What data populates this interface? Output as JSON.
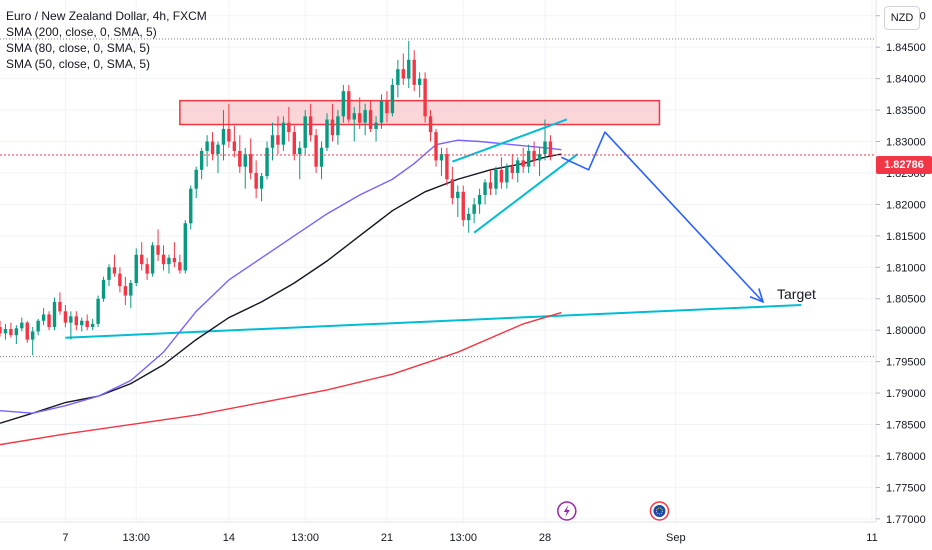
{
  "legend": {
    "title": "Euro / New Zealand Dollar, 4h, FXCM",
    "sma200": "SMA (200, close, 0, SMA, 5)",
    "sma80": "SMA (80, close, 0, SMA, 5)",
    "sma50": "SMA (50, close, 0, SMA, 5)"
  },
  "currency_badge": "NZD",
  "last_price": "1.82786",
  "annotations": {
    "target_label": "Target"
  },
  "colors": {
    "up": "#089981",
    "down": "#f23645",
    "sma200": "#f23645",
    "sma80": "#131722",
    "sma50": "#7b61ff",
    "pattern": "#00bcd4",
    "arrow": "#2962ff",
    "zone_fill": "#f8c8cc",
    "zone_stroke": "#f23645"
  },
  "icons": [
    "lightning-event-icon",
    "flag-event-icon"
  ],
  "chart_data": {
    "type": "candlestick",
    "title": "Euro / New Zealand Dollar, 4h, FXCM",
    "y_ticks": [
      1.85,
      1.845,
      1.84,
      1.835,
      1.83,
      1.825,
      1.82,
      1.815,
      1.81,
      1.805,
      1.8,
      1.795,
      1.79,
      1.785,
      1.78,
      1.775,
      1.77
    ],
    "y_tick_labels": [
      "1.85000",
      "1.84500",
      "1.84000",
      "1.83500",
      "1.83000",
      "1.82500",
      "1.82000",
      "1.81500",
      "1.81000",
      "1.80500",
      "1.80000",
      "1.79500",
      "1.79000",
      "1.78500",
      "1.78000",
      "1.77500",
      "1.77000"
    ],
    "ylim": [
      1.7695,
      1.8525
    ],
    "x_ticks": [
      {
        "label": "7",
        "index": 12
      },
      {
        "label": "13:00",
        "index": 25
      },
      {
        "label": "14",
        "index": 42
      },
      {
        "label": "13:00",
        "index": 56
      },
      {
        "label": "21",
        "index": 71
      },
      {
        "label": "13:00",
        "index": 85
      },
      {
        "label": "28",
        "index": 100
      },
      {
        "label": "Sep",
        "index": 124
      },
      {
        "label": "11",
        "index": 160
      }
    ],
    "xlim": [
      0,
      170
    ],
    "candles": [
      [
        1.8005,
        1.8015,
        1.799,
        1.7995
      ],
      [
        1.7995,
        1.801,
        1.7985,
        1.8002
      ],
      [
        1.8002,
        1.8012,
        1.7988,
        1.7992
      ],
      [
        1.7992,
        1.8008,
        1.7978,
        1.8003
      ],
      [
        1.8003,
        1.802,
        1.7998,
        1.8012
      ],
      [
        1.8012,
        1.8015,
        1.798,
        1.7985
      ],
      [
        1.7985,
        1.8005,
        1.796,
        1.7998
      ],
      [
        1.7998,
        1.8018,
        1.7992,
        1.8015
      ],
      [
        1.8015,
        1.8035,
        1.8008,
        1.8025
      ],
      [
        1.8025,
        1.803,
        1.8,
        1.8005
      ],
      [
        1.8005,
        1.8052,
        1.8,
        1.8045
      ],
      [
        1.8045,
        1.806,
        1.8025,
        1.803
      ],
      [
        1.803,
        1.804,
        1.8005,
        1.8012
      ],
      [
        1.8012,
        1.803,
        1.7985,
        1.8022
      ],
      [
        1.8022,
        1.803,
        1.8,
        1.8008
      ],
      [
        1.8008,
        1.802,
        1.7998,
        1.8015
      ],
      [
        1.8015,
        1.8025,
        1.8,
        1.8005
      ],
      [
        1.8005,
        1.8018,
        1.8,
        1.801
      ],
      [
        1.801,
        1.8055,
        1.8005,
        1.805
      ],
      [
        1.805,
        1.8085,
        1.8045,
        1.808
      ],
      [
        1.808,
        1.8105,
        1.807,
        1.81
      ],
      [
        1.81,
        1.812,
        1.8085,
        1.809
      ],
      [
        1.809,
        1.81,
        1.806,
        1.807
      ],
      [
        1.807,
        1.8085,
        1.804,
        1.8055
      ],
      [
        1.8055,
        1.808,
        1.8035,
        1.8075
      ],
      [
        1.8075,
        1.813,
        1.807,
        1.812
      ],
      [
        1.812,
        1.814,
        1.8095,
        1.8105
      ],
      [
        1.8105,
        1.8115,
        1.808,
        1.809
      ],
      [
        1.809,
        1.814,
        1.8085,
        1.8135
      ],
      [
        1.8135,
        1.816,
        1.811,
        1.812
      ],
      [
        1.812,
        1.8135,
        1.8095,
        1.8105
      ],
      [
        1.8105,
        1.812,
        1.809,
        1.8115
      ],
      [
        1.8115,
        1.814,
        1.81,
        1.8108
      ],
      [
        1.8108,
        1.812,
        1.809,
        1.8095
      ],
      [
        1.8095,
        1.8175,
        1.809,
        1.817
      ],
      [
        1.817,
        1.823,
        1.816,
        1.8225
      ],
      [
        1.8225,
        1.826,
        1.821,
        1.8255
      ],
      [
        1.8255,
        1.829,
        1.824,
        1.8285
      ],
      [
        1.8285,
        1.831,
        1.826,
        1.83
      ],
      [
        1.83,
        1.8315,
        1.827,
        1.828
      ],
      [
        1.828,
        1.83,
        1.825,
        1.8295
      ],
      [
        1.8295,
        1.835,
        1.827,
        1.832
      ],
      [
        1.832,
        1.836,
        1.829,
        1.83
      ],
      [
        1.83,
        1.8325,
        1.8275,
        1.8285
      ],
      [
        1.8285,
        1.831,
        1.825,
        1.826
      ],
      [
        1.826,
        1.829,
        1.8225,
        1.828
      ],
      [
        1.828,
        1.8305,
        1.824,
        1.825
      ],
      [
        1.825,
        1.827,
        1.821,
        1.8225
      ],
      [
        1.8225,
        1.825,
        1.8205,
        1.8245
      ],
      [
        1.8245,
        1.83,
        1.824,
        1.829
      ],
      [
        1.829,
        1.833,
        1.827,
        1.831
      ],
      [
        1.831,
        1.834,
        1.828,
        1.8295
      ],
      [
        1.8295,
        1.834,
        1.8285,
        1.833
      ],
      [
        1.833,
        1.8355,
        1.83,
        1.8315
      ],
      [
        1.8315,
        1.8325,
        1.827,
        1.828
      ],
      [
        1.828,
        1.83,
        1.824,
        1.829
      ],
      [
        1.829,
        1.835,
        1.828,
        1.834
      ],
      [
        1.834,
        1.836,
        1.83,
        1.831
      ],
      [
        1.831,
        1.832,
        1.825,
        1.826
      ],
      [
        1.826,
        1.83,
        1.824,
        1.829
      ],
      [
        1.829,
        1.8345,
        1.8285,
        1.8335
      ],
      [
        1.8335,
        1.836,
        1.83,
        1.831
      ],
      [
        1.831,
        1.835,
        1.8295,
        1.834
      ],
      [
        1.834,
        1.839,
        1.833,
        1.838
      ],
      [
        1.838,
        1.839,
        1.833,
        1.8335
      ],
      [
        1.8335,
        1.8355,
        1.83,
        1.8345
      ],
      [
        1.8345,
        1.837,
        1.832,
        1.833
      ],
      [
        1.833,
        1.836,
        1.831,
        1.835
      ],
      [
        1.835,
        1.8365,
        1.8315,
        1.832
      ],
      [
        1.832,
        1.834,
        1.83,
        1.833
      ],
      [
        1.833,
        1.8375,
        1.832,
        1.8365
      ],
      [
        1.8365,
        1.838,
        1.833,
        1.8345
      ],
      [
        1.8345,
        1.84,
        1.834,
        1.839
      ],
      [
        1.839,
        1.843,
        1.837,
        1.8415
      ],
      [
        1.8415,
        1.844,
        1.839,
        1.84
      ],
      [
        1.84,
        1.846,
        1.8385,
        1.843
      ],
      [
        1.843,
        1.8445,
        1.838,
        1.839
      ],
      [
        1.839,
        1.841,
        1.837,
        1.84
      ],
      [
        1.84,
        1.841,
        1.833,
        1.834
      ],
      [
        1.834,
        1.835,
        1.83,
        1.8315
      ],
      [
        1.8315,
        1.832,
        1.826,
        1.827
      ],
      [
        1.827,
        1.829,
        1.8245,
        1.828
      ],
      [
        1.828,
        1.829,
        1.823,
        1.824
      ],
      [
        1.824,
        1.826,
        1.82,
        1.821
      ],
      [
        1.821,
        1.823,
        1.818,
        1.822
      ],
      [
        1.822,
        1.823,
        1.8165,
        1.8175
      ],
      [
        1.8175,
        1.8195,
        1.8155,
        1.8185
      ],
      [
        1.8185,
        1.821,
        1.817,
        1.82
      ],
      [
        1.82,
        1.8225,
        1.8185,
        1.8215
      ],
      [
        1.8215,
        1.824,
        1.82,
        1.8235
      ],
      [
        1.8235,
        1.8255,
        1.8215,
        1.8225
      ],
      [
        1.8225,
        1.826,
        1.8215,
        1.8255
      ],
      [
        1.8255,
        1.8275,
        1.8225,
        1.8235
      ],
      [
        1.8235,
        1.8265,
        1.8225,
        1.826
      ],
      [
        1.826,
        1.828,
        1.824,
        1.825
      ],
      [
        1.825,
        1.8275,
        1.8235,
        1.827
      ],
      [
        1.827,
        1.829,
        1.825,
        1.826
      ],
      [
        1.826,
        1.8295,
        1.825,
        1.8285
      ],
      [
        1.8285,
        1.83,
        1.826,
        1.827
      ],
      [
        1.827,
        1.829,
        1.8245,
        1.828
      ],
      [
        1.828,
        1.8335,
        1.827,
        1.83
      ],
      [
        1.83,
        1.831,
        1.827,
        1.8279
      ]
    ],
    "sma50": [
      [
        0,
        1.7872
      ],
      [
        6,
        1.7868
      ],
      [
        12,
        1.788
      ],
      [
        18,
        1.7895
      ],
      [
        24,
        1.792
      ],
      [
        30,
        1.7965
      ],
      [
        36,
        1.803
      ],
      [
        42,
        1.808
      ],
      [
        48,
        1.8115
      ],
      [
        54,
        1.815
      ],
      [
        60,
        1.8185
      ],
      [
        66,
        1.8215
      ],
      [
        72,
        1.824
      ],
      [
        76,
        1.8265
      ],
      [
        80,
        1.8295
      ],
      [
        84,
        1.8302
      ],
      [
        88,
        1.83
      ],
      [
        94,
        1.8295
      ],
      [
        100,
        1.829
      ],
      [
        103,
        1.8287
      ]
    ],
    "sma80": [
      [
        0,
        1.7852
      ],
      [
        6,
        1.7868
      ],
      [
        12,
        1.7885
      ],
      [
        18,
        1.7895
      ],
      [
        24,
        1.7915
      ],
      [
        30,
        1.7945
      ],
      [
        36,
        1.7985
      ],
      [
        42,
        1.802
      ],
      [
        48,
        1.8045
      ],
      [
        54,
        1.8075
      ],
      [
        60,
        1.811
      ],
      [
        66,
        1.815
      ],
      [
        72,
        1.819
      ],
      [
        78,
        1.822
      ],
      [
        84,
        1.824
      ],
      [
        90,
        1.8255
      ],
      [
        96,
        1.8265
      ],
      [
        100,
        1.8275
      ],
      [
        103,
        1.828
      ]
    ],
    "sma200": [
      [
        0,
        1.7818
      ],
      [
        12,
        1.7835
      ],
      [
        24,
        1.785
      ],
      [
        36,
        1.7865
      ],
      [
        48,
        1.7885
      ],
      [
        60,
        1.7905
      ],
      [
        72,
        1.793
      ],
      [
        84,
        1.7965
      ],
      [
        96,
        1.801
      ],
      [
        103,
        1.8028
      ]
    ],
    "resistance_zone": {
      "x0": 33,
      "x1": 121,
      "y_low": 1.8327,
      "y_high": 1.8365
    },
    "trendline": {
      "x0": 12,
      "y0": 1.7988,
      "x1": 147,
      "y1": 1.804
    },
    "wedge_upper": {
      "x0": 83,
      "y0": 1.8268,
      "x1": 104,
      "y1": 1.8335
    },
    "wedge_lower": {
      "x0": 87,
      "y0": 1.8155,
      "x1": 106,
      "y1": 1.828
    },
    "projection": [
      [
        103,
        1.8275
      ],
      [
        108,
        1.8255
      ],
      [
        111,
        1.8315
      ],
      [
        140,
        1.8045
      ]
    ],
    "target_point": [
      140,
      1.8045
    ],
    "dotted_levels": [
      1.8463,
      1.7958
    ],
    "event_markers": [
      {
        "icon": "lightning",
        "index": 104
      },
      {
        "icon": "flag",
        "index": 121
      }
    ]
  }
}
